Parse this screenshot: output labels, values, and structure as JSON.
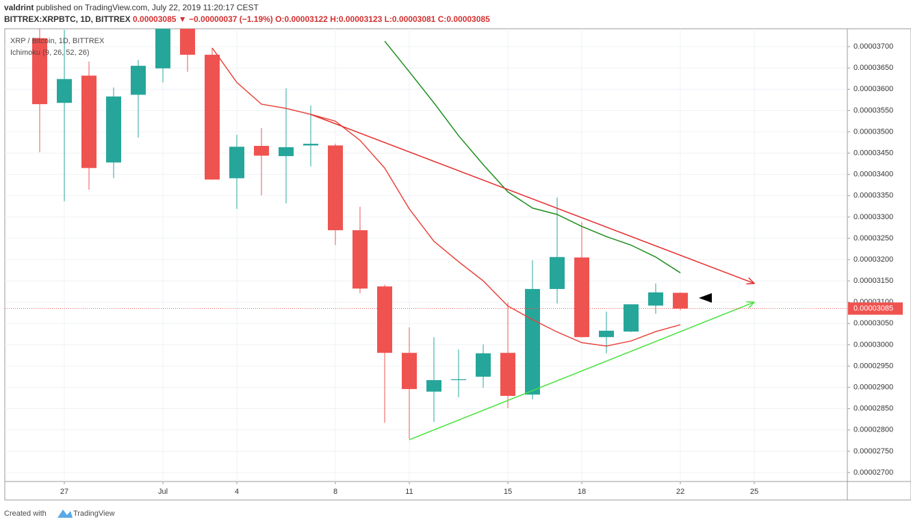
{
  "header": {
    "author": "valdrint",
    "published": "published on TradingView.com, July 22, 2019 11:20:17 CEST",
    "symbol": "BITTREX:XRPBTC, 1D, BITTREX",
    "last": "0.00003085",
    "change_arrow": "▼",
    "change": "−0.00000037 (−1.19%)",
    "open": "O:0.00003122",
    "high": "H:0.00003123",
    "low": "L:0.00003081",
    "close": "C:0.00003085"
  },
  "footer": {
    "created": "Created with",
    "brand": "TradingView"
  },
  "chart_data": {
    "type": "candlestick",
    "legend": [
      "XRP / Bitcoin, 1D, BITTREX",
      "Ichimoku (9, 26, 52, 26)"
    ],
    "categories": [
      null,
      "27",
      null,
      null,
      null,
      "Jul",
      null,
      null,
      "4",
      null,
      null,
      null,
      "8",
      null,
      null,
      "11",
      null,
      null,
      null,
      "15",
      null,
      null,
      "18",
      null,
      null,
      null,
      "22",
      null,
      null,
      "25"
    ],
    "up_color": "#26a69a",
    "down_color": "#ef5350",
    "open": [
      3.72e-05,
      3.568e-05,
      3.632e-05,
      3.428e-05,
      3.587e-05,
      3.649e-05,
      3.78e-05,
      3.681e-05,
      3.391e-05,
      3.467e-05,
      3.443e-05,
      3.468e-05,
      3.468e-05,
      3.269e-05,
      3.137e-05,
      2.981e-05,
      2.89e-05,
      2.917e-05,
      2.925e-05,
      2.981e-05,
      2.883e-05,
      3.131e-05,
      3.205e-05,
      3.018e-05,
      3.031e-05,
      3.092e-05,
      3.122e-05,
      null,
      null,
      null
    ],
    "high": [
      3.76e-05,
      3.74e-05,
      3.665e-05,
      3.604e-05,
      3.669e-05,
      3.8e-05,
      3.82e-05,
      3.697e-05,
      3.493e-05,
      3.509e-05,
      3.602e-05,
      3.562e-05,
      3.472e-05,
      3.324e-05,
      3.141e-05,
      3.041e-05,
      3.018e-05,
      2.989e-05,
      3.001e-05,
      3.099e-05,
      3.198e-05,
      3.346e-05,
      3.288e-05,
      3.078e-05,
      3.095e-05,
      3.144e-05,
      3.123e-05,
      null,
      null,
      null
    ],
    "low": [
      3.452e-05,
      3.337e-05,
      3.364e-05,
      3.391e-05,
      3.486e-05,
      3.616e-05,
      3.641e-05,
      3.387e-05,
      3.319e-05,
      3.351e-05,
      3.332e-05,
      3.419e-05,
      3.234e-05,
      3.121e-05,
      2.817e-05,
      2.779e-05,
      2.819e-05,
      2.877e-05,
      2.899e-05,
      2.851e-05,
      2.872e-05,
      3.097e-05,
      3.017e-05,
      2.98e-05,
      3.03e-05,
      3.073e-05,
      3.081e-05,
      null,
      null,
      null
    ],
    "close": [
      3.565e-05,
      3.624e-05,
      3.415e-05,
      3.583e-05,
      3.655e-05,
      3.76e-05,
      3.681e-05,
      3.388e-05,
      3.465e-05,
      3.444e-05,
      3.464e-05,
      3.472e-05,
      3.269e-05,
      3.132e-05,
      2.981e-05,
      2.896e-05,
      2.917e-05,
      2.919e-05,
      2.98e-05,
      2.88e-05,
      3.131e-05,
      3.206e-05,
      3.018e-05,
      3.033e-05,
      3.095e-05,
      3.123e-05,
      3.085e-05,
      null,
      null,
      null
    ],
    "series": [
      {
        "color": "#e8453c",
        "values": [
          null,
          null,
          null,
          null,
          null,
          null,
          null,
          3.697e-05,
          3.616e-05,
          3.565e-05,
          3.555e-05,
          3.541e-05,
          3.525e-05,
          3.48e-05,
          3.415e-05,
          3.319e-05,
          3.243e-05,
          3.195e-05,
          3.15e-05,
          3.091e-05,
          3.059e-05,
          3.03e-05,
          3.005e-05,
          2.997e-05,
          3.009e-05,
          3.031e-05,
          3.047e-05,
          null,
          null,
          null
        ]
      },
      {
        "color": "#1a8c1a",
        "values": [
          null,
          null,
          null,
          null,
          null,
          null,
          null,
          null,
          null,
          null,
          null,
          null,
          null,
          null,
          3.713e-05,
          3.641e-05,
          3.568e-05,
          3.491e-05,
          3.423e-05,
          3.359e-05,
          3.321e-05,
          3.306e-05,
          3.278e-05,
          3.254e-05,
          3.234e-05,
          3.206e-05,
          3.169e-05,
          null,
          null,
          null
        ]
      }
    ],
    "trendlines": [
      {
        "color": "#e52b2b",
        "x": [
          11,
          29
        ],
        "values": [
          3.541e-05,
          3.144e-05
        ]
      },
      {
        "color": "#44e23a",
        "x": [
          15,
          29
        ],
        "values": [
          2.777e-05,
          3.1e-05
        ]
      }
    ],
    "last_price": {
      "value": 3.085e-05,
      "label": "0.00003085",
      "color": "#ef5350"
    },
    "ylim": [
      2.679e-05,
      3.742e-05
    ],
    "yticks": [
      {
        "value": 2.7e-05,
        "label": "0.00002700"
      },
      {
        "value": 2.75e-05,
        "label": "0.00002750"
      },
      {
        "value": 2.8e-05,
        "label": "0.00002800"
      },
      {
        "value": 2.85e-05,
        "label": "0.00002850"
      },
      {
        "value": 2.9e-05,
        "label": "0.00002900"
      },
      {
        "value": 2.95e-05,
        "label": "0.00002950"
      },
      {
        "value": 3e-05,
        "label": "0.00003000"
      },
      {
        "value": 3.05e-05,
        "label": "0.00003050"
      },
      {
        "value": 3.1e-05,
        "label": "0.00003100"
      },
      {
        "value": 3.15e-05,
        "label": "0.00003150"
      },
      {
        "value": 3.2e-05,
        "label": "0.00003200"
      },
      {
        "value": 3.25e-05,
        "label": "0.00003250"
      },
      {
        "value": 3.3e-05,
        "label": "0.00003300"
      },
      {
        "value": 3.35e-05,
        "label": "0.00003350"
      },
      {
        "value": 3.4e-05,
        "label": "0.00003400"
      },
      {
        "value": 3.45e-05,
        "label": "0.00003450"
      },
      {
        "value": 3.5e-05,
        "label": "0.00003500"
      },
      {
        "value": 3.55e-05,
        "label": "0.00003550"
      },
      {
        "value": 3.6e-05,
        "label": "0.00003600"
      },
      {
        "value": 3.65e-05,
        "label": "0.00003650"
      },
      {
        "value": 3.7e-05,
        "label": "0.00003700"
      }
    ],
    "grid": true
  }
}
